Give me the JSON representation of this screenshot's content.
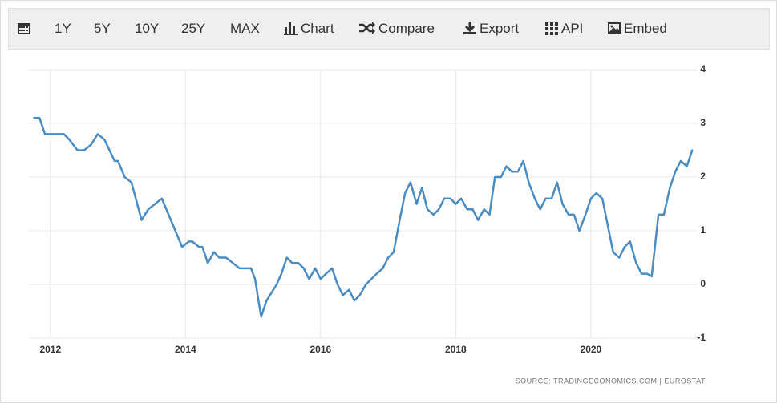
{
  "toolbar": {
    "buttons": [
      "1Y",
      "5Y",
      "10Y",
      "25Y",
      "MAX",
      "Chart",
      "Compare",
      "Export",
      "API",
      "Embed"
    ]
  },
  "chart_data": {
    "type": "line",
    "source": "SOURCE: TRADINGECONOMICS.COM  |  EUROSTAT",
    "x": [
      2011.76,
      2011.84,
      2011.92,
      2012.0,
      2012.1,
      2012.2,
      2012.28,
      2012.4,
      2012.5,
      2012.6,
      2012.7,
      2012.8,
      2012.95,
      2013.0,
      2013.1,
      2013.2,
      2013.35,
      2013.45,
      2013.55,
      2013.65,
      2013.75,
      2013.85,
      2013.95,
      2014.05,
      2014.1,
      2014.2,
      2014.25,
      2014.33,
      2014.42,
      2014.5,
      2014.6,
      2014.7,
      2014.8,
      2014.9,
      2014.97,
      2015.03,
      2015.08,
      2015.12,
      2015.2,
      2015.35,
      2015.42,
      2015.5,
      2015.58,
      2015.67,
      2015.75,
      2015.83,
      2015.92,
      2016.0,
      2016.08,
      2016.17,
      2016.25,
      2016.33,
      2016.42,
      2016.5,
      2016.58,
      2016.67,
      2016.75,
      2016.83,
      2016.92,
      2017.0,
      2017.08,
      2017.17,
      2017.25,
      2017.33,
      2017.42,
      2017.5,
      2017.58,
      2017.67,
      2017.75,
      2017.83,
      2017.92,
      2018.0,
      2018.08,
      2018.17,
      2018.25,
      2018.33,
      2018.42,
      2018.5,
      2018.58,
      2018.67,
      2018.75,
      2018.83,
      2018.92,
      2019.0,
      2019.08,
      2019.17,
      2019.25,
      2019.33,
      2019.42,
      2019.5,
      2019.58,
      2019.67,
      2019.75,
      2019.83,
      2019.92,
      2020.0,
      2020.08,
      2020.17,
      2020.25,
      2020.33,
      2020.42,
      2020.5,
      2020.58,
      2020.67,
      2020.75,
      2020.83,
      2020.9,
      2021.0,
      2021.08,
      2021.17,
      2021.25,
      2021.33,
      2021.42,
      2021.5
    ],
    "series": [
      {
        "color": "#4a8cc2",
        "values": [
          3.1,
          3.1,
          2.8,
          2.8,
          2.8,
          2.8,
          2.7,
          2.5,
          2.5,
          2.6,
          2.8,
          2.7,
          2.3,
          2.3,
          2.0,
          1.9,
          1.2,
          1.4,
          1.5,
          1.6,
          1.3,
          1.0,
          0.7,
          0.8,
          0.8,
          0.7,
          0.7,
          0.4,
          0.6,
          0.5,
          0.5,
          0.4,
          0.3,
          0.3,
          0.3,
          0.1,
          -0.3,
          -0.6,
          -0.3,
          0.0,
          0.2,
          0.5,
          0.4,
          0.4,
          0.3,
          0.1,
          0.3,
          0.1,
          0.2,
          0.3,
          0.0,
          -0.2,
          -0.1,
          -0.3,
          -0.2,
          0.0,
          0.1,
          0.2,
          0.3,
          0.5,
          0.6,
          1.2,
          1.7,
          1.9,
          1.5,
          1.8,
          1.4,
          1.3,
          1.4,
          1.6,
          1.6,
          1.5,
          1.6,
          1.4,
          1.4,
          1.2,
          1.4,
          1.3,
          2.0,
          2.0,
          2.2,
          2.1,
          2.1,
          2.3,
          1.9,
          1.6,
          1.4,
          1.6,
          1.6,
          1.9,
          1.5,
          1.3,
          1.3,
          1.0,
          1.3,
          1.6,
          1.7,
          1.6,
          1.1,
          0.6,
          0.5,
          0.7,
          0.8,
          0.4,
          0.2,
          0.2,
          0.15,
          1.3,
          1.3,
          1.8,
          2.1,
          2.3,
          2.2,
          2.5
        ]
      }
    ],
    "xlim": [
      2011.67,
      2021.58
    ],
    "xticks": [
      2012,
      2014,
      2016,
      2018,
      2020
    ],
    "ylim": [
      -1,
      4
    ],
    "yticks": [
      -1,
      0,
      1,
      2,
      3,
      4
    ],
    "grid": true
  }
}
